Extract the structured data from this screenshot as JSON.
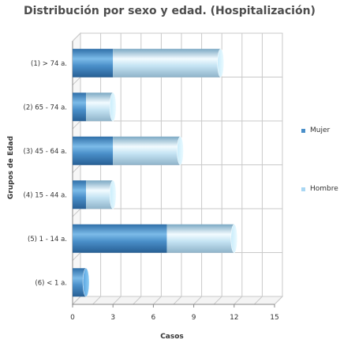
{
  "chart_data": {
    "type": "bar",
    "orientation": "horizontal",
    "stacked": true,
    "style": "3d-cylinder",
    "title": "Distribución por sexo y edad. (Hospitalización)",
    "xlabel": "Casos",
    "ylabel": "Grupos de Edad",
    "categories": [
      "(1) > 74 a.",
      "(2) 65 - 74 a.",
      "(3) 45 - 64 a.",
      "(4) 15 - 44 a.",
      "(5) 1 - 14 a.",
      "(6) < 1 a."
    ],
    "series": [
      {
        "name": "Mujer",
        "values": [
          3,
          1,
          3,
          1,
          7,
          1
        ],
        "color": "#4a8fc9"
      },
      {
        "name": "Hombre",
        "values": [
          8,
          2,
          5,
          2,
          5,
          0
        ],
        "color": "#a9d7f3"
      }
    ],
    "xlim": [
      0,
      15
    ],
    "xticks": [
      0,
      3,
      6,
      9,
      12,
      15
    ],
    "grid": true,
    "legend_position": "right"
  }
}
